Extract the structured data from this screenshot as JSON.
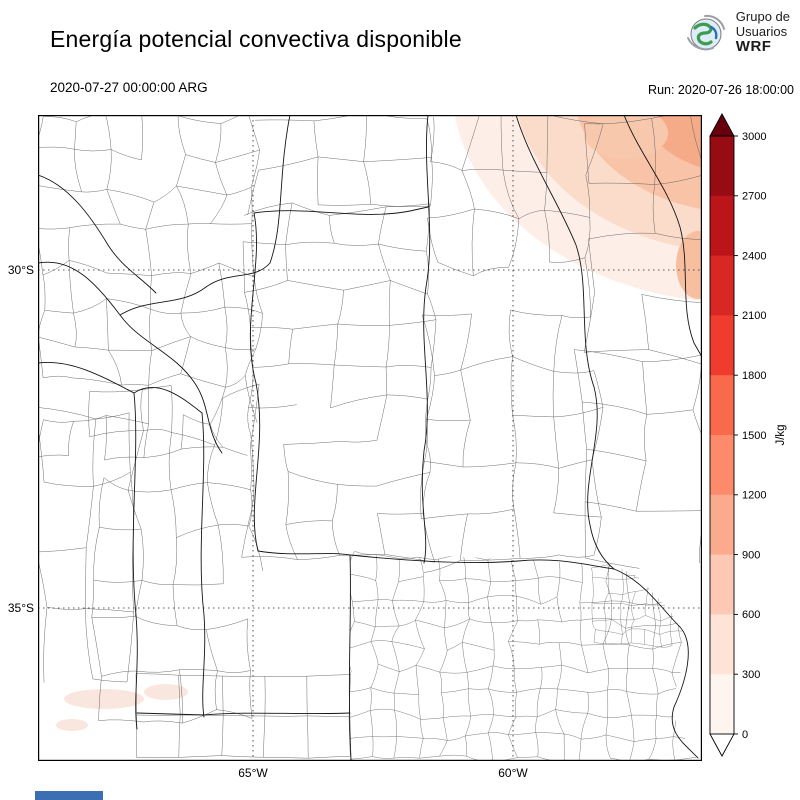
{
  "header": {
    "title": "Energía potencial convectiva disponible",
    "logo": {
      "line1": "Grupo de",
      "line2": "Usuarios",
      "line3": "WRF"
    }
  },
  "subheader": {
    "valid_time": "2020-07-27 00:00:00 ARG",
    "run_time": "Run: 2020-07-26 18:00:00"
  },
  "map": {
    "lat_labels": {
      "lat30": "30°S",
      "lat35": "35°S"
    },
    "lon_labels": {
      "lon65": "65°W",
      "lon60": "60°W"
    }
  },
  "colorbar": {
    "label": "J/kg",
    "ticks_top_to_bottom": [
      "3000",
      "2700",
      "2400",
      "2100",
      "1800",
      "1500",
      "1200",
      "900",
      "600",
      "300",
      "0"
    ],
    "segment_colors_top_to_bottom": [
      "#970b13",
      "#bb151a",
      "#d92723",
      "#ef3c2c",
      "#f9694c",
      "#fc8a6b",
      "#fcaa8d",
      "#fdc9b4",
      "#fee3d7",
      "#fff5f0"
    ],
    "over_color": "#67000d",
    "under_color": "#ffffff"
  },
  "accents": {
    "footer_bar_color": "#3c6eb4"
  }
}
